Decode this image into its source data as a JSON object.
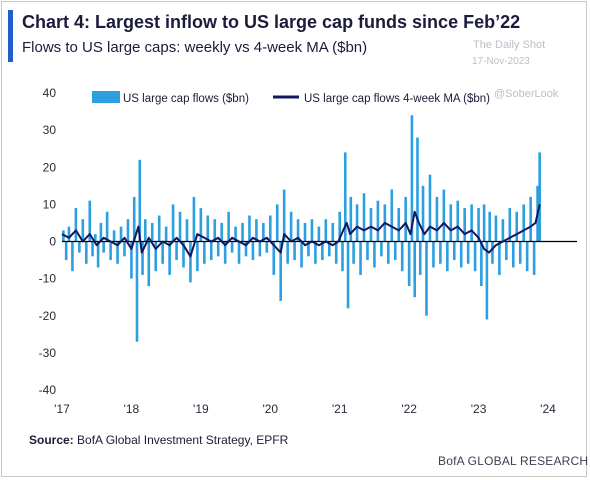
{
  "header": {
    "title": "Chart 4: Largest inflow to US large cap funds since Feb’22",
    "subtitle": "Flows to US large caps: weekly vs 4-week MA ($bn)"
  },
  "watermark": {
    "line1": "The Daily Shot",
    "line2": "17-Nov-2023",
    "line3": "@SoberLook"
  },
  "footer": {
    "source_label": "Source:",
    "source_text": "BofA Global Investment Strategy, EPFR",
    "brand": "BofA GLOBAL RESEARCH"
  },
  "colors": {
    "bars": "#2b9fe0",
    "ma_line": "#14165e",
    "accent": "#1f5fd0"
  },
  "chart_data": {
    "type": "bar",
    "title": "Chart 4: Largest inflow to US large cap funds since Feb’22",
    "subtitle": "Flows to US large caps: weekly vs 4-week MA ($bn)",
    "ylim": [
      -40,
      40
    ],
    "y_ticks": [
      40,
      30,
      20,
      10,
      0,
      -10,
      -20,
      -30,
      -40
    ],
    "x_ticks": [
      "'17",
      "'18",
      "'19",
      "'20",
      "'21",
      "'22",
      "'23",
      "'24"
    ],
    "x_range": [
      2017.0,
      2024.0
    ],
    "grid": false,
    "legend_position": "top",
    "series": [
      {
        "name": "US large cap flows ($bn)",
        "kind": "bar",
        "points": [
          [
            2017.02,
            3
          ],
          [
            2017.06,
            -5
          ],
          [
            2017.1,
            4
          ],
          [
            2017.15,
            -8
          ],
          [
            2017.2,
            9
          ],
          [
            2017.25,
            -3
          ],
          [
            2017.3,
            6
          ],
          [
            2017.35,
            -6
          ],
          [
            2017.4,
            11
          ],
          [
            2017.44,
            -4
          ],
          [
            2017.48,
            2
          ],
          [
            2017.52,
            -7
          ],
          [
            2017.56,
            5
          ],
          [
            2017.6,
            -3
          ],
          [
            2017.65,
            8
          ],
          [
            2017.7,
            -5
          ],
          [
            2017.75,
            3
          ],
          [
            2017.8,
            -6
          ],
          [
            2017.85,
            4
          ],
          [
            2017.9,
            -4
          ],
          [
            2017.95,
            6
          ],
          [
            2018.0,
            -10
          ],
          [
            2018.04,
            12
          ],
          [
            2018.08,
            -27
          ],
          [
            2018.12,
            22
          ],
          [
            2018.16,
            -9
          ],
          [
            2018.2,
            6
          ],
          [
            2018.25,
            -12
          ],
          [
            2018.3,
            5
          ],
          [
            2018.35,
            -8
          ],
          [
            2018.4,
            7
          ],
          [
            2018.45,
            -6
          ],
          [
            2018.5,
            4
          ],
          [
            2018.55,
            -9
          ],
          [
            2018.6,
            10
          ],
          [
            2018.65,
            -5
          ],
          [
            2018.7,
            8
          ],
          [
            2018.75,
            -7
          ],
          [
            2018.8,
            6
          ],
          [
            2018.85,
            -11
          ],
          [
            2018.9,
            12
          ],
          [
            2018.95,
            -8
          ],
          [
            2019.0,
            9
          ],
          [
            2019.05,
            -6
          ],
          [
            2019.1,
            7
          ],
          [
            2019.15,
            -5
          ],
          [
            2019.2,
            6
          ],
          [
            2019.25,
            -4
          ],
          [
            2019.3,
            5
          ],
          [
            2019.35,
            -6
          ],
          [
            2019.4,
            8
          ],
          [
            2019.45,
            -3
          ],
          [
            2019.5,
            4
          ],
          [
            2019.55,
            -6
          ],
          [
            2019.6,
            5
          ],
          [
            2019.65,
            -4
          ],
          [
            2019.7,
            7
          ],
          [
            2019.75,
            -5
          ],
          [
            2019.8,
            6
          ],
          [
            2019.85,
            -4
          ],
          [
            2019.9,
            5
          ],
          [
            2019.95,
            -3
          ],
          [
            2020.0,
            7
          ],
          [
            2020.05,
            -9
          ],
          [
            2020.1,
            10
          ],
          [
            2020.15,
            -16
          ],
          [
            2020.2,
            14
          ],
          [
            2020.25,
            -6
          ],
          [
            2020.3,
            8
          ],
          [
            2020.35,
            -5
          ],
          [
            2020.4,
            6
          ],
          [
            2020.45,
            -7
          ],
          [
            2020.5,
            5
          ],
          [
            2020.55,
            -4
          ],
          [
            2020.6,
            6
          ],
          [
            2020.65,
            -6
          ],
          [
            2020.7,
            4
          ],
          [
            2020.75,
            -5
          ],
          [
            2020.8,
            6
          ],
          [
            2020.85,
            -4
          ],
          [
            2020.9,
            5
          ],
          [
            2020.95,
            -6
          ],
          [
            2021.0,
            8
          ],
          [
            2021.04,
            -8
          ],
          [
            2021.08,
            24
          ],
          [
            2021.12,
            -18
          ],
          [
            2021.16,
            12
          ],
          [
            2021.2,
            -6
          ],
          [
            2021.25,
            10
          ],
          [
            2021.3,
            -9
          ],
          [
            2021.35,
            13
          ],
          [
            2021.4,
            -5
          ],
          [
            2021.45,
            9
          ],
          [
            2021.5,
            -7
          ],
          [
            2021.55,
            11
          ],
          [
            2021.6,
            -4
          ],
          [
            2021.65,
            10
          ],
          [
            2021.7,
            -6
          ],
          [
            2021.75,
            14
          ],
          [
            2021.8,
            -5
          ],
          [
            2021.85,
            9
          ],
          [
            2021.9,
            -8
          ],
          [
            2021.95,
            12
          ],
          [
            2022.0,
            -12
          ],
          [
            2022.04,
            34
          ],
          [
            2022.08,
            -15
          ],
          [
            2022.12,
            28
          ],
          [
            2022.16,
            -9
          ],
          [
            2022.2,
            15
          ],
          [
            2022.25,
            -20
          ],
          [
            2022.3,
            18
          ],
          [
            2022.35,
            -7
          ],
          [
            2022.4,
            12
          ],
          [
            2022.45,
            -6
          ],
          [
            2022.5,
            14
          ],
          [
            2022.55,
            -8
          ],
          [
            2022.6,
            10
          ],
          [
            2022.65,
            -5
          ],
          [
            2022.7,
            11
          ],
          [
            2022.75,
            -7
          ],
          [
            2022.8,
            9
          ],
          [
            2022.85,
            -6
          ],
          [
            2022.9,
            10
          ],
          [
            2022.95,
            -8
          ],
          [
            2023.0,
            9
          ],
          [
            2023.04,
            -12
          ],
          [
            2023.08,
            10
          ],
          [
            2023.12,
            -21
          ],
          [
            2023.16,
            8
          ],
          [
            2023.2,
            -6
          ],
          [
            2023.25,
            7
          ],
          [
            2023.3,
            -9
          ],
          [
            2023.35,
            6
          ],
          [
            2023.4,
            -5
          ],
          [
            2023.45,
            9
          ],
          [
            2023.5,
            -7
          ],
          [
            2023.55,
            8
          ],
          [
            2023.6,
            -6
          ],
          [
            2023.65,
            10
          ],
          [
            2023.7,
            -8
          ],
          [
            2023.75,
            12
          ],
          [
            2023.8,
            -9
          ],
          [
            2023.85,
            15
          ],
          [
            2023.88,
            24
          ]
        ]
      },
      {
        "name": "US large cap flows 4-week MA ($bn)",
        "kind": "line",
        "points": [
          [
            2017.0,
            2
          ],
          [
            2017.1,
            1
          ],
          [
            2017.2,
            3
          ],
          [
            2017.3,
            0
          ],
          [
            2017.4,
            2
          ],
          [
            2017.5,
            -1
          ],
          [
            2017.6,
            1
          ],
          [
            2017.7,
            0
          ],
          [
            2017.8,
            -1
          ],
          [
            2017.9,
            1
          ],
          [
            2018.0,
            -2
          ],
          [
            2018.1,
            4
          ],
          [
            2018.15,
            -3
          ],
          [
            2018.25,
            1
          ],
          [
            2018.35,
            -2
          ],
          [
            2018.45,
            0
          ],
          [
            2018.55,
            -1
          ],
          [
            2018.65,
            1
          ],
          [
            2018.75,
            -1
          ],
          [
            2018.85,
            -4
          ],
          [
            2018.95,
            2
          ],
          [
            2019.05,
            1
          ],
          [
            2019.15,
            0
          ],
          [
            2019.25,
            1
          ],
          [
            2019.35,
            -1
          ],
          [
            2019.45,
            1
          ],
          [
            2019.55,
            0
          ],
          [
            2019.65,
            -1
          ],
          [
            2019.75,
            1
          ],
          [
            2019.85,
            0
          ],
          [
            2019.95,
            1
          ],
          [
            2020.05,
            -1
          ],
          [
            2020.15,
            -3
          ],
          [
            2020.2,
            2
          ],
          [
            2020.3,
            0
          ],
          [
            2020.4,
            1
          ],
          [
            2020.5,
            -1
          ],
          [
            2020.6,
            0
          ],
          [
            2020.7,
            -1
          ],
          [
            2020.8,
            0
          ],
          [
            2020.9,
            -1
          ],
          [
            2020.98,
            0
          ],
          [
            2021.05,
            3
          ],
          [
            2021.1,
            5
          ],
          [
            2021.15,
            2
          ],
          [
            2021.25,
            4
          ],
          [
            2021.35,
            3
          ],
          [
            2021.45,
            4
          ],
          [
            2021.55,
            3
          ],
          [
            2021.65,
            5
          ],
          [
            2021.75,
            4
          ],
          [
            2021.85,
            3
          ],
          [
            2021.95,
            5
          ],
          [
            2022.02,
            2
          ],
          [
            2022.08,
            8
          ],
          [
            2022.14,
            5
          ],
          [
            2022.22,
            2
          ],
          [
            2022.3,
            4
          ],
          [
            2022.4,
            3
          ],
          [
            2022.5,
            5
          ],
          [
            2022.6,
            3
          ],
          [
            2022.7,
            4
          ],
          [
            2022.8,
            2
          ],
          [
            2022.9,
            3
          ],
          [
            2023.0,
            1
          ],
          [
            2023.08,
            -2
          ],
          [
            2023.15,
            -3
          ],
          [
            2023.25,
            -1
          ],
          [
            2023.35,
            0
          ],
          [
            2023.45,
            1
          ],
          [
            2023.55,
            2
          ],
          [
            2023.65,
            3
          ],
          [
            2023.75,
            4
          ],
          [
            2023.82,
            5
          ],
          [
            2023.88,
            10
          ]
        ]
      }
    ]
  }
}
